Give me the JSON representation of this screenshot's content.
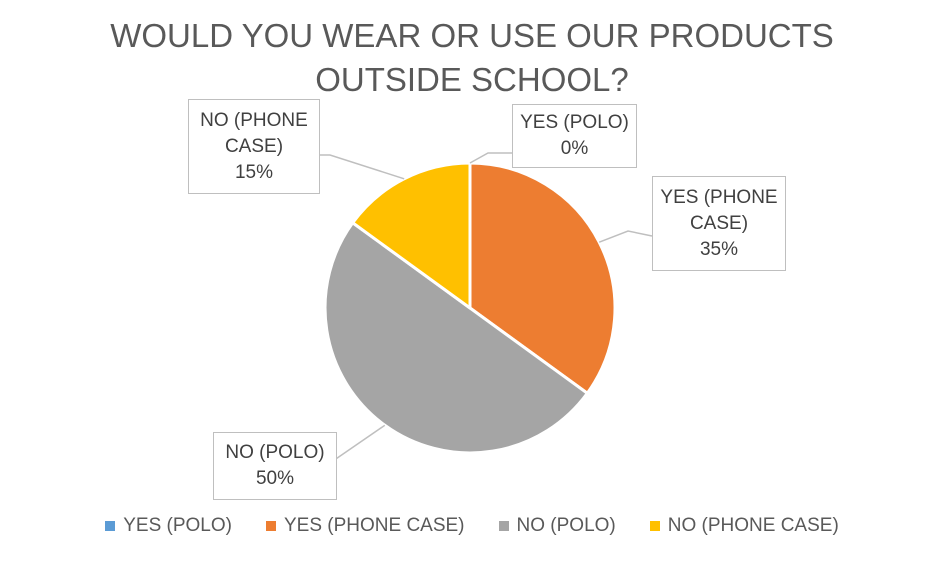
{
  "chart_data": {
    "type": "pie",
    "title_lines": [
      "WOULD YOU WEAR OR USE OUR PRODUCTS",
      "OUTSIDE SCHOOL?"
    ],
    "legend_position": "bottom",
    "slices": [
      {
        "label_lines": [
          "YES (POLO)"
        ],
        "value": 0,
        "value_label": "0%",
        "legend": "YES (POLO)",
        "color": "#5B9BD5"
      },
      {
        "label_lines": [
          "YES (PHONE",
          "CASE)"
        ],
        "value": 35,
        "value_label": "35%",
        "legend": "YES (PHONE CASE)",
        "color": "#ED7D31"
      },
      {
        "label_lines": [
          "NO (POLO)"
        ],
        "value": 50,
        "value_label": "50%",
        "legend": "NO (POLO)",
        "color": "#A5A5A5"
      },
      {
        "label_lines": [
          "NO (PHONE",
          "CASE)"
        ],
        "value": 15,
        "value_label": "15%",
        "legend": "NO (PHONE CASE)",
        "color": "#FFC000"
      }
    ]
  }
}
